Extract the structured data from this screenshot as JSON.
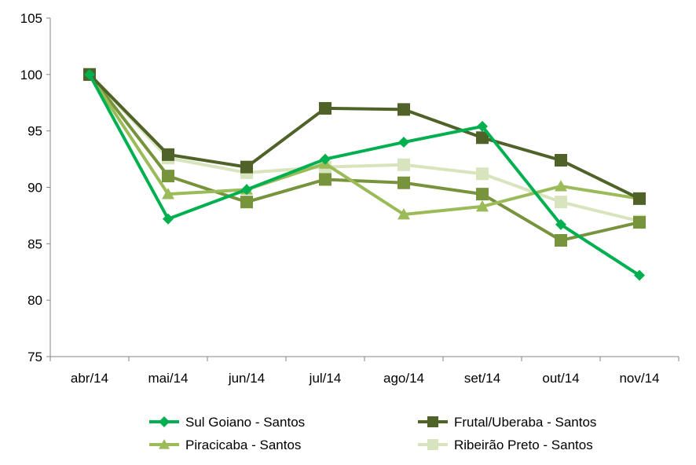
{
  "chart_data": {
    "type": "line",
    "title": "",
    "xlabel": "",
    "ylabel": "",
    "categories": [
      "abr/14",
      "mai/14",
      "jun/14",
      "jul/14",
      "ago/14",
      "set/14",
      "out/14",
      "nov/14"
    ],
    "ylim": [
      75,
      105
    ],
    "yticks": [
      75,
      80,
      85,
      90,
      95,
      100,
      105
    ],
    "grid": false,
    "legend_position": "bottom",
    "series": [
      {
        "name": "Sul Goiano - Santos",
        "marker": "diamond",
        "color": "#00B050",
        "values": [
          100,
          87.2,
          89.8,
          92.5,
          94.0,
          95.4,
          86.7,
          82.2
        ]
      },
      {
        "name": "Frutal/Uberaba - Santos",
        "marker": "square",
        "color": "#4F6228",
        "values": [
          100,
          92.9,
          91.8,
          97.0,
          96.9,
          94.4,
          92.4,
          89.0
        ]
      },
      {
        "name": "Piracicaba - Santos",
        "marker": "triangle",
        "color": "#9BBB59",
        "values": [
          100,
          89.4,
          89.8,
          92.1,
          87.6,
          88.3,
          90.1,
          89.0
        ]
      },
      {
        "name": "Ribeirão Preto - Santos",
        "marker": "square",
        "color": "#D7E4BD",
        "values": [
          100,
          92.6,
          91.3,
          91.8,
          92.0,
          91.2,
          88.7,
          87.0
        ]
      },
      {
        "name": "",
        "marker": "square",
        "color": "#77933C",
        "values": [
          100,
          91.0,
          88.7,
          90.7,
          90.4,
          89.4,
          85.3,
          86.9
        ]
      }
    ]
  }
}
